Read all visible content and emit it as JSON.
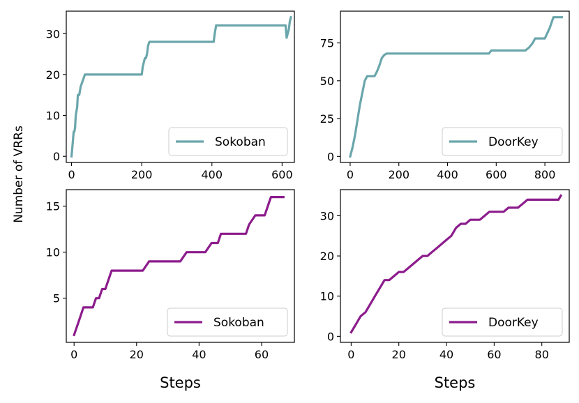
{
  "figure": {
    "ylabel": "Number of VRRs",
    "xlabel": "Steps"
  },
  "colors": {
    "teal": "#6aa6ab",
    "purple": "#8c1c8c"
  },
  "chart_data": [
    {
      "type": "line",
      "panel": "top-left",
      "legend": "Sokoban",
      "legend_position": "lower-right",
      "color": "#6aa6ab",
      "xlim": [
        -15,
        635
      ],
      "ylim": [
        -1.5,
        35.5
      ],
      "xticks": [
        0,
        200,
        400,
        600
      ],
      "yticks": [
        0,
        10,
        20,
        30
      ],
      "xlabel": "",
      "x": [
        0,
        2,
        4,
        6,
        8,
        10,
        12,
        14,
        16,
        18,
        22,
        26,
        30,
        34,
        38,
        42,
        60,
        100,
        150,
        200,
        203,
        206,
        209,
        212,
        215,
        218,
        222,
        226,
        240,
        300,
        350,
        405,
        408,
        412,
        416,
        500,
        550,
        610,
        613,
        616,
        619,
        622,
        625
      ],
      "y": [
        0,
        2,
        4,
        6,
        6,
        7,
        10,
        11,
        12,
        15,
        15,
        17,
        18,
        19,
        20,
        20,
        20,
        20,
        20,
        20,
        22,
        23,
        24,
        24,
        25,
        27,
        28,
        28,
        28,
        28,
        28,
        28,
        30,
        32,
        32,
        32,
        32,
        32,
        29,
        30,
        31,
        33,
        34
      ]
    },
    {
      "type": "line",
      "panel": "top-right",
      "legend": "DoorKey",
      "legend_position": "lower-right",
      "color": "#6aa6ab",
      "xlim": [
        -40,
        900
      ],
      "ylim": [
        -4,
        96
      ],
      "xticks": [
        0,
        200,
        400,
        600,
        800
      ],
      "yticks": [
        0,
        25,
        50,
        75
      ],
      "xlabel": "",
      "x": [
        0,
        10,
        20,
        30,
        40,
        50,
        60,
        70,
        80,
        90,
        100,
        110,
        120,
        130,
        140,
        150,
        200,
        300,
        400,
        500,
        570,
        580,
        600,
        650,
        720,
        735,
        750,
        760,
        780,
        800,
        820,
        835,
        850,
        870
      ],
      "y": [
        0,
        6,
        14,
        24,
        34,
        42,
        50,
        53,
        53,
        53,
        53,
        56,
        60,
        65,
        67,
        68,
        68,
        68,
        68,
        68,
        68,
        70,
        70,
        70,
        70,
        72,
        75,
        78,
        78,
        78,
        85,
        92,
        92,
        92
      ]
    },
    {
      "type": "line",
      "panel": "bottom-left",
      "legend": "Sokoban",
      "legend_position": "lower-right",
      "color": "#8c1c8c",
      "xlim": [
        -2.5,
        70.5
      ],
      "ylim": [
        0.2,
        16.8
      ],
      "xticks": [
        0,
        20,
        40,
        60
      ],
      "yticks": [
        5,
        10,
        15
      ],
      "xlabel": "Steps",
      "x": [
        0,
        1,
        2,
        3,
        4,
        5,
        6,
        7,
        8,
        9,
        10,
        11,
        12,
        14,
        16,
        18,
        20,
        22,
        24,
        26,
        28,
        30,
        32,
        34,
        36,
        38,
        40,
        42,
        44,
        45,
        46,
        47,
        48,
        50,
        52,
        54,
        55,
        56,
        58,
        60,
        61,
        62,
        63,
        64,
        66,
        67
      ],
      "y": [
        1,
        2,
        3,
        4,
        4,
        4,
        4,
        5,
        5,
        6,
        6,
        7,
        8,
        8,
        8,
        8,
        8,
        8,
        9,
        9,
        9,
        9,
        9,
        9,
        10,
        10,
        10,
        10,
        11,
        11,
        11,
        12,
        12,
        12,
        12,
        12,
        12,
        13,
        14,
        14,
        14,
        15,
        16,
        16,
        16,
        16
      ]
    },
    {
      "type": "line",
      "panel": "bottom-right",
      "legend": "DoorKey",
      "legend_position": "lower-right",
      "color": "#8c1c8c",
      "xlim": [
        -4.5,
        91.5
      ],
      "ylim": [
        -1.5,
        36.5
      ],
      "xticks": [
        0,
        20,
        40,
        60,
        80
      ],
      "yticks": [
        0,
        10,
        20,
        30
      ],
      "xlabel": "Steps",
      "x": [
        0,
        2,
        4,
        6,
        8,
        10,
        12,
        14,
        16,
        18,
        20,
        22,
        24,
        26,
        28,
        30,
        32,
        34,
        36,
        38,
        40,
        42,
        44,
        46,
        48,
        50,
        52,
        54,
        56,
        58,
        60,
        62,
        64,
        66,
        68,
        70,
        72,
        74,
        76,
        78,
        80,
        82,
        84,
        86,
        87,
        88
      ],
      "y": [
        1,
        3,
        5,
        6,
        8,
        10,
        12,
        14,
        14,
        15,
        16,
        16,
        17,
        18,
        19,
        20,
        20,
        21,
        22,
        23,
        24,
        25,
        27,
        28,
        28,
        29,
        29,
        29,
        30,
        31,
        31,
        31,
        31,
        32,
        32,
        32,
        33,
        34,
        34,
        34,
        34,
        34,
        34,
        34,
        34,
        35
      ]
    }
  ]
}
